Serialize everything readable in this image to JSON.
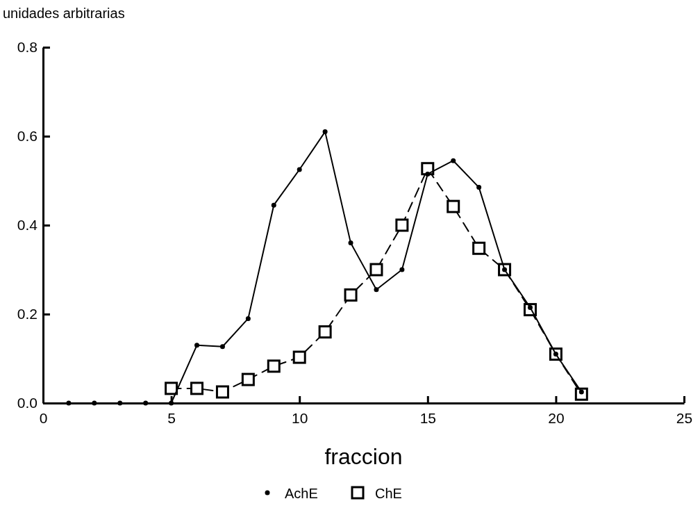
{
  "chart_data": {
    "type": "line",
    "xlabel": "fraccion",
    "ylabel": "unidades arbitrarias",
    "xlim": [
      0,
      25
    ],
    "xticks": [
      0,
      5,
      10,
      15,
      20,
      25
    ],
    "ylim": [
      0,
      0.8
    ],
    "yticks": [
      {
        "value": 0,
        "label": "0.0"
      },
      {
        "value": 0.2,
        "label": "0.2"
      },
      {
        "value": 0.4,
        "label": "0.4"
      },
      {
        "value": 0.6,
        "label": "0.6"
      },
      {
        "value": 0.8,
        "label": "0.8"
      }
    ],
    "grid": false,
    "legend": "bottom",
    "series": [
      {
        "name": "AchE",
        "color": "#000000",
        "marker": "circle",
        "line_style": "solid",
        "x": [
          1,
          2,
          3,
          4,
          5,
          6,
          7,
          8,
          9,
          10,
          11,
          12,
          13,
          14,
          15,
          16,
          17,
          18,
          19,
          20,
          21
        ],
        "values": [
          0,
          0,
          0,
          0,
          0,
          0.13,
          0.127,
          0.19,
          0.445,
          0.525,
          0.61,
          0.36,
          0.255,
          0.3,
          0.515,
          0.545,
          0.485,
          0.3,
          0.215,
          0.11,
          0.025
        ]
      },
      {
        "name": "ChE",
        "color": "#000000",
        "marker": "square",
        "line_style": "dashed",
        "x": [
          5,
          6,
          7,
          8,
          9,
          10,
          11,
          12,
          13,
          14,
          15,
          16,
          17,
          18,
          19,
          20,
          21
        ],
        "values": [
          0.033,
          0.033,
          0.025,
          0.053,
          0.083,
          0.103,
          0.16,
          0.243,
          0.3,
          0.4,
          0.527,
          0.442,
          0.348,
          0.3,
          0.21,
          0.11,
          0.02
        ]
      }
    ]
  }
}
